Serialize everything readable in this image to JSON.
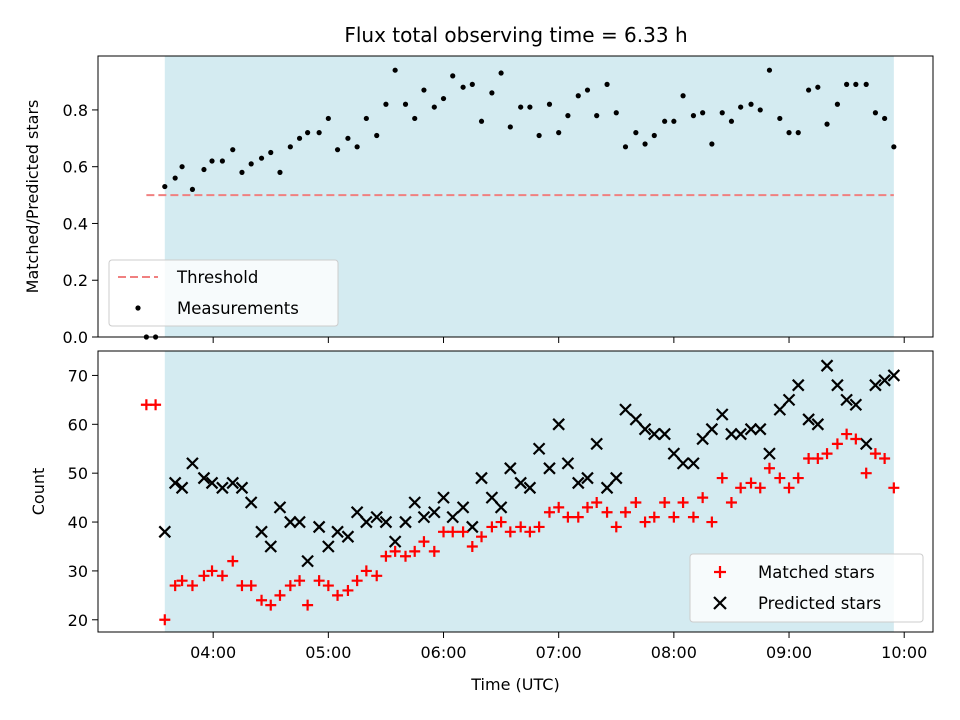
{
  "chart_data": [
    {
      "type": "scatter",
      "title": "Flux total observing time = 6.33 h",
      "xlabel": "",
      "ylabel": "Matched/Predicted stars",
      "ylim": [
        0,
        0.99
      ],
      "yticks": [
        0.0,
        0.2,
        0.4,
        0.6,
        0.8
      ],
      "ytick_labels": [
        "0.0",
        "0.2",
        "0.4",
        "0.6",
        "0.8"
      ],
      "x_unit": "hours UTC",
      "xlim": [
        3.0,
        10.25
      ],
      "observing_span": [
        3.58,
        9.91
      ],
      "shade_color": "#d4ebf1",
      "legend_position": "lower left",
      "series": [
        {
          "name": "Threshold",
          "style": "dashed-line",
          "color": "#f08080",
          "x": [
            3.42,
            9.91
          ],
          "y": [
            0.5,
            0.5
          ]
        },
        {
          "name": "Measurements",
          "style": "dot",
          "color": "#000000",
          "x": [
            3.42,
            3.5,
            3.58,
            3.67,
            3.73,
            3.82,
            3.92,
            3.99,
            4.08,
            4.17,
            4.25,
            4.33,
            4.42,
            4.5,
            4.58,
            4.67,
            4.75,
            4.82,
            4.92,
            5.0,
            5.08,
            5.17,
            5.25,
            5.33,
            5.42,
            5.5,
            5.58,
            5.67,
            5.75,
            5.83,
            5.92,
            6.0,
            6.08,
            6.17,
            6.25,
            6.33,
            6.42,
            6.5,
            6.58,
            6.67,
            6.75,
            6.83,
            6.92,
            7.0,
            7.08,
            7.17,
            7.25,
            7.33,
            7.42,
            7.5,
            7.58,
            7.67,
            7.75,
            7.83,
            7.92,
            8.0,
            8.08,
            8.17,
            8.25,
            8.33,
            8.42,
            8.5,
            8.58,
            8.67,
            8.75,
            8.83,
            8.92,
            9.0,
            9.08,
            9.17,
            9.25,
            9.33,
            9.42,
            9.5,
            9.58,
            9.67,
            9.75,
            9.83,
            9.91
          ],
          "y": [
            0.0,
            0.0,
            0.53,
            0.56,
            0.6,
            0.52,
            0.59,
            0.62,
            0.62,
            0.66,
            0.58,
            0.61,
            0.63,
            0.65,
            0.58,
            0.67,
            0.7,
            0.72,
            0.72,
            0.77,
            0.66,
            0.7,
            0.67,
            0.77,
            0.71,
            0.82,
            0.94,
            0.82,
            0.77,
            0.87,
            0.81,
            0.84,
            0.92,
            0.88,
            0.89,
            0.76,
            0.86,
            0.93,
            0.74,
            0.81,
            0.81,
            0.71,
            0.82,
            0.72,
            0.78,
            0.85,
            0.87,
            0.78,
            0.89,
            0.79,
            0.67,
            0.72,
            0.68,
            0.71,
            0.76,
            0.76,
            0.85,
            0.78,
            0.79,
            0.68,
            0.79,
            0.76,
            0.81,
            0.82,
            0.8,
            0.94,
            0.77,
            0.72,
            0.72,
            0.87,
            0.88,
            0.75,
            0.82,
            0.89,
            0.89,
            0.89,
            0.79,
            0.77,
            0.67
          ]
        }
      ]
    },
    {
      "type": "scatter",
      "title": "",
      "xlabel": "Time (UTC)",
      "ylabel": "Count",
      "ylim": [
        17.5,
        75
      ],
      "yticks": [
        20,
        30,
        40,
        50,
        60,
        70
      ],
      "ytick_labels": [
        "20",
        "30",
        "40",
        "50",
        "60",
        "70"
      ],
      "xticks": [
        4,
        5,
        6,
        7,
        8,
        9,
        10
      ],
      "xtick_labels": [
        "04:00",
        "05:00",
        "06:00",
        "07:00",
        "08:00",
        "09:00",
        "10:00"
      ],
      "x_unit": "hours UTC",
      "xlim": [
        3.0,
        10.25
      ],
      "observing_span": [
        3.58,
        9.91
      ],
      "shade_color": "#d4ebf1",
      "legend_position": "lower right",
      "series": [
        {
          "name": "Matched stars",
          "marker": "plus",
          "color": "#ff0000",
          "x": [
            3.42,
            3.5,
            3.58,
            3.67,
            3.73,
            3.82,
            3.92,
            3.99,
            4.08,
            4.17,
            4.25,
            4.33,
            4.42,
            4.5,
            4.58,
            4.67,
            4.75,
            4.82,
            4.92,
            5.0,
            5.08,
            5.17,
            5.25,
            5.33,
            5.42,
            5.5,
            5.58,
            5.67,
            5.75,
            5.83,
            5.92,
            6.0,
            6.08,
            6.17,
            6.25,
            6.33,
            6.42,
            6.5,
            6.58,
            6.67,
            6.75,
            6.83,
            6.92,
            7.0,
            7.08,
            7.17,
            7.25,
            7.33,
            7.42,
            7.5,
            7.58,
            7.67,
            7.75,
            7.83,
            7.92,
            8.0,
            8.08,
            8.17,
            8.25,
            8.33,
            8.42,
            8.5,
            8.58,
            8.67,
            8.75,
            8.83,
            8.92,
            9.0,
            9.08,
            9.17,
            9.25,
            9.33,
            9.42,
            9.5,
            9.58,
            9.67,
            9.75,
            9.83,
            9.91
          ],
          "y": [
            64,
            64,
            20,
            27,
            28,
            27,
            29,
            30,
            29,
            32,
            27,
            27,
            24,
            23,
            25,
            27,
            28,
            23,
            28,
            27,
            25,
            26,
            28,
            30,
            29,
            33,
            34,
            33,
            34,
            36,
            34,
            38,
            38,
            38,
            35,
            37,
            39,
            40,
            38,
            39,
            38,
            39,
            42,
            43,
            41,
            41,
            43,
            44,
            42,
            39,
            42,
            44,
            40,
            41,
            44,
            41,
            44,
            41,
            45,
            40,
            49,
            44,
            47,
            48,
            47,
            51,
            49,
            47,
            49,
            53,
            53,
            54,
            56,
            58,
            57,
            50,
            54,
            53,
            47
          ]
        },
        {
          "name": "Predicted stars",
          "marker": "x",
          "color": "#000000",
          "x": [
            3.58,
            3.67,
            3.73,
            3.82,
            3.92,
            3.99,
            4.08,
            4.17,
            4.25,
            4.33,
            4.42,
            4.5,
            4.58,
            4.67,
            4.75,
            4.82,
            4.92,
            5.0,
            5.08,
            5.17,
            5.25,
            5.33,
            5.42,
            5.5,
            5.58,
            5.67,
            5.75,
            5.83,
            5.92,
            6.0,
            6.08,
            6.17,
            6.25,
            6.33,
            6.42,
            6.5,
            6.58,
            6.67,
            6.75,
            6.83,
            6.92,
            7.0,
            7.08,
            7.17,
            7.25,
            7.33,
            7.42,
            7.5,
            7.58,
            7.67,
            7.75,
            7.83,
            7.92,
            8.0,
            8.08,
            8.17,
            8.25,
            8.33,
            8.42,
            8.5,
            8.58,
            8.67,
            8.75,
            8.83,
            8.92,
            9.0,
            9.08,
            9.17,
            9.25,
            9.33,
            9.42,
            9.5,
            9.58,
            9.67,
            9.75,
            9.83,
            9.91
          ],
          "y": [
            38,
            48,
            47,
            52,
            49,
            48,
            47,
            48,
            47,
            44,
            38,
            35,
            43,
            40,
            40,
            32,
            39,
            35,
            38,
            37,
            42,
            40,
            41,
            40,
            36,
            40,
            44,
            41,
            42,
            45,
            41,
            43,
            39,
            49,
            45,
            43,
            51,
            48,
            47,
            55,
            51,
            60,
            52,
            48,
            49,
            56,
            47,
            49,
            63,
            61,
            59,
            58,
            58,
            54,
            52,
            52,
            57,
            59,
            62,
            58,
            58,
            59,
            59,
            54,
            63,
            65,
            68,
            61,
            60,
            72,
            68,
            65,
            64,
            56,
            68,
            69,
            70
          ]
        }
      ]
    }
  ]
}
